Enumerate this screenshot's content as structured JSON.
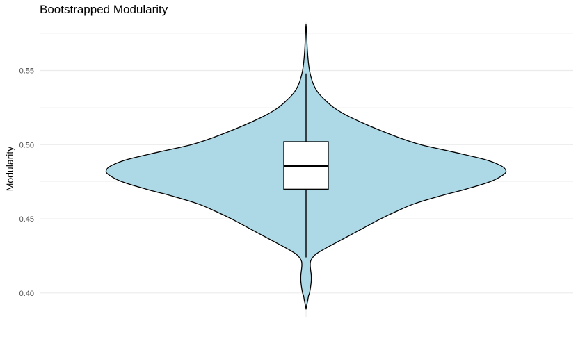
{
  "chart_data": {
    "type": "violin",
    "title": "Bootstrapped Modularity",
    "xlabel": "",
    "ylabel": "Modularity",
    "ylim": [
      0.384,
      0.583
    ],
    "yticks": [
      0.4,
      0.45,
      0.5,
      0.55
    ],
    "ytick_labels": [
      "0.40",
      "0.45",
      "0.50",
      "0.55"
    ],
    "grid": true,
    "fill_color": "#add8e6",
    "box_fill": "#ffffff",
    "outline_color": "#000000",
    "violin": {
      "min": 0.389,
      "max": 0.581,
      "density": [
        [
          0.389,
          0.0
        ],
        [
          0.392,
          0.004
        ],
        [
          0.395,
          0.01
        ],
        [
          0.398,
          0.014
        ],
        [
          0.4,
          0.02
        ],
        [
          0.404,
          0.026
        ],
        [
          0.408,
          0.03
        ],
        [
          0.412,
          0.03
        ],
        [
          0.416,
          0.026
        ],
        [
          0.419,
          0.024
        ],
        [
          0.422,
          0.028
        ],
        [
          0.426,
          0.055
        ],
        [
          0.43,
          0.11
        ],
        [
          0.435,
          0.19
        ],
        [
          0.44,
          0.27
        ],
        [
          0.445,
          0.35
        ],
        [
          0.45,
          0.43
        ],
        [
          0.455,
          0.52
        ],
        [
          0.46,
          0.62
        ],
        [
          0.465,
          0.76
        ],
        [
          0.47,
          0.92
        ],
        [
          0.475,
          1.06
        ],
        [
          0.48,
          1.14
        ],
        [
          0.483,
          1.15
        ],
        [
          0.486,
          1.12
        ],
        [
          0.49,
          1.03
        ],
        [
          0.495,
          0.85
        ],
        [
          0.5,
          0.66
        ],
        [
          0.505,
          0.53
        ],
        [
          0.51,
          0.42
        ],
        [
          0.515,
          0.32
        ],
        [
          0.52,
          0.23
        ],
        [
          0.525,
          0.16
        ],
        [
          0.53,
          0.11
        ],
        [
          0.535,
          0.07
        ],
        [
          0.54,
          0.045
        ],
        [
          0.545,
          0.03
        ],
        [
          0.55,
          0.02
        ],
        [
          0.555,
          0.014
        ],
        [
          0.56,
          0.01
        ],
        [
          0.565,
          0.007
        ],
        [
          0.57,
          0.005
        ],
        [
          0.575,
          0.003
        ],
        [
          0.578,
          0.002
        ],
        [
          0.581,
          0.0
        ]
      ]
    },
    "box": {
      "whisker_low": 0.424,
      "q1": 0.47,
      "median": 0.4855,
      "q3": 0.502,
      "whisker_high": 0.548
    }
  }
}
